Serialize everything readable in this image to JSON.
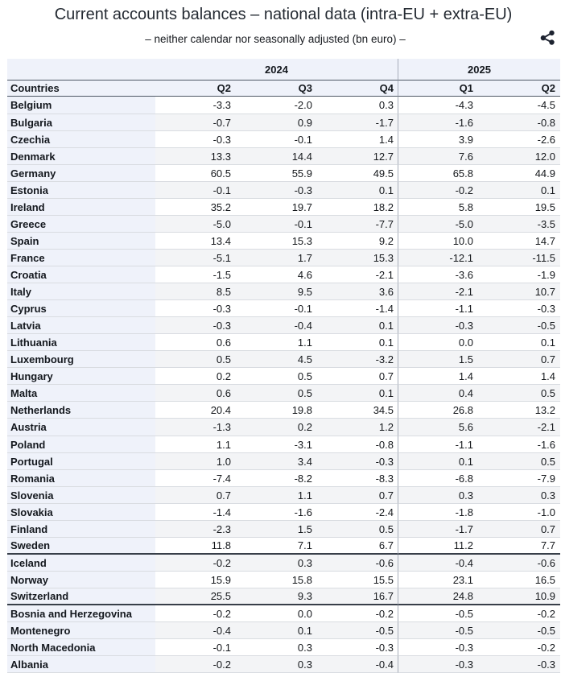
{
  "header": {
    "title": "Current accounts balances – national data (intra-EU + extra-EU)",
    "subtitle": "– neither calendar nor seasonally adjusted (bn euro) –",
    "share_icon": "share-icon"
  },
  "table": {
    "year_groups": [
      {
        "label": "2024",
        "colspan": 3
      },
      {
        "label": "2025",
        "colspan": 2
      }
    ],
    "columns": [
      "Countries",
      "Q2",
      "Q3",
      "Q4",
      "Q1",
      "Q2"
    ],
    "sections": [
      {
        "rows": [
          {
            "country": "Belgium",
            "values": [
              "-3.3",
              "-2.0",
              "0.3",
              "-4.3",
              "-4.5"
            ]
          },
          {
            "country": "Bulgaria",
            "values": [
              "-0.7",
              "0.9",
              "-1.7",
              "-1.6",
              "-0.8"
            ]
          },
          {
            "country": "Czechia",
            "values": [
              "-0.3",
              "-0.1",
              "1.4",
              "3.9",
              "-2.6"
            ]
          },
          {
            "country": "Denmark",
            "values": [
              "13.3",
              "14.4",
              "12.7",
              "7.6",
              "12.0"
            ]
          },
          {
            "country": "Germany",
            "values": [
              "60.5",
              "55.9",
              "49.5",
              "65.8",
              "44.9"
            ]
          },
          {
            "country": "Estonia",
            "values": [
              "-0.1",
              "-0.3",
              "0.1",
              "-0.2",
              "0.1"
            ]
          },
          {
            "country": "Ireland",
            "values": [
              "35.2",
              "19.7",
              "18.2",
              "5.8",
              "19.5"
            ]
          },
          {
            "country": "Greece",
            "values": [
              "-5.0",
              "-0.1",
              "-7.7",
              "-5.0",
              "-3.5"
            ]
          },
          {
            "country": "Spain",
            "values": [
              "13.4",
              "15.3",
              "9.2",
              "10.0",
              "14.7"
            ]
          },
          {
            "country": "France",
            "values": [
              "-5.1",
              "1.7",
              "15.3",
              "-12.1",
              "-11.5"
            ]
          },
          {
            "country": "Croatia",
            "values": [
              "-1.5",
              "4.6",
              "-2.1",
              "-3.6",
              "-1.9"
            ]
          },
          {
            "country": "Italy",
            "values": [
              "8.5",
              "9.5",
              "3.6",
              "-2.1",
              "10.7"
            ]
          },
          {
            "country": "Cyprus",
            "values": [
              "-0.3",
              "-0.1",
              "-1.4",
              "-1.1",
              "-0.3"
            ]
          },
          {
            "country": "Latvia",
            "values": [
              "-0.3",
              "-0.4",
              "0.1",
              "-0.3",
              "-0.5"
            ]
          },
          {
            "country": "Lithuania",
            "values": [
              "0.6",
              "1.1",
              "0.1",
              "0.0",
              "0.1"
            ]
          },
          {
            "country": "Luxembourg",
            "values": [
              "0.5",
              "4.5",
              "-3.2",
              "1.5",
              "0.7"
            ]
          },
          {
            "country": "Hungary",
            "values": [
              "0.2",
              "0.5",
              "0.7",
              "1.4",
              "1.4"
            ]
          },
          {
            "country": "Malta",
            "values": [
              "0.6",
              "0.5",
              "0.1",
              "0.4",
              "0.5"
            ]
          },
          {
            "country": "Netherlands",
            "values": [
              "20.4",
              "19.8",
              "34.5",
              "26.8",
              "13.2"
            ]
          },
          {
            "country": "Austria",
            "values": [
              "-1.3",
              "0.2",
              "1.2",
              "5.6",
              "-2.1"
            ]
          },
          {
            "country": "Poland",
            "values": [
              "1.1",
              "-3.1",
              "-0.8",
              "-1.1",
              "-1.6"
            ]
          },
          {
            "country": "Portugal",
            "values": [
              "1.0",
              "3.4",
              "-0.3",
              "0.1",
              "0.5"
            ]
          },
          {
            "country": "Romania",
            "values": [
              "-7.4",
              "-8.2",
              "-8.3",
              "-6.8",
              "-7.9"
            ]
          },
          {
            "country": "Slovenia",
            "values": [
              "0.7",
              "1.1",
              "0.7",
              "0.3",
              "0.3"
            ]
          },
          {
            "country": "Slovakia",
            "values": [
              "-1.4",
              "-1.6",
              "-2.4",
              "-1.8",
              "-1.0"
            ]
          },
          {
            "country": "Finland",
            "values": [
              "-2.3",
              "1.5",
              "0.5",
              "-1.7",
              "0.7"
            ]
          },
          {
            "country": "Sweden",
            "values": [
              "11.8",
              "7.1",
              "6.7",
              "11.2",
              "7.7"
            ]
          }
        ]
      },
      {
        "rows": [
          {
            "country": "Iceland",
            "values": [
              "-0.2",
              "0.3",
              "-0.6",
              "-0.4",
              "-0.6"
            ]
          },
          {
            "country": "Norway",
            "values": [
              "15.9",
              "15.8",
              "15.5",
              "23.1",
              "16.5"
            ]
          },
          {
            "country": "Switzerland",
            "values": [
              "25.5",
              "9.3",
              "16.7",
              "24.8",
              "10.9"
            ]
          }
        ]
      },
      {
        "rows": [
          {
            "country": "Bosnia and Herzegovina",
            "values": [
              "-0.2",
              "0.0",
              "-0.2",
              "-0.5",
              "-0.2"
            ]
          },
          {
            "country": "Montenegro",
            "values": [
              "-0.4",
              "0.1",
              "-0.5",
              "-0.5",
              "-0.5"
            ]
          },
          {
            "country": "North Macedonia",
            "values": [
              "-0.1",
              "0.3",
              "-0.3",
              "-0.3",
              "-0.2"
            ]
          },
          {
            "country": "Albania",
            "values": [
              "-0.2",
              "0.3",
              "-0.4",
              "-0.3",
              "-0.3"
            ]
          }
        ]
      }
    ]
  },
  "colors": {
    "header_background": "#eff2fa",
    "country_column_background": "#eff2fa",
    "zebra_stripe": "#f3f4f6",
    "header_border": "#4e5765",
    "section_border": "#3f4650",
    "row_border": "#d9dce1",
    "group_divider": "#a8aeba",
    "title_text": "#252b33",
    "icon": "#1d2330"
  }
}
